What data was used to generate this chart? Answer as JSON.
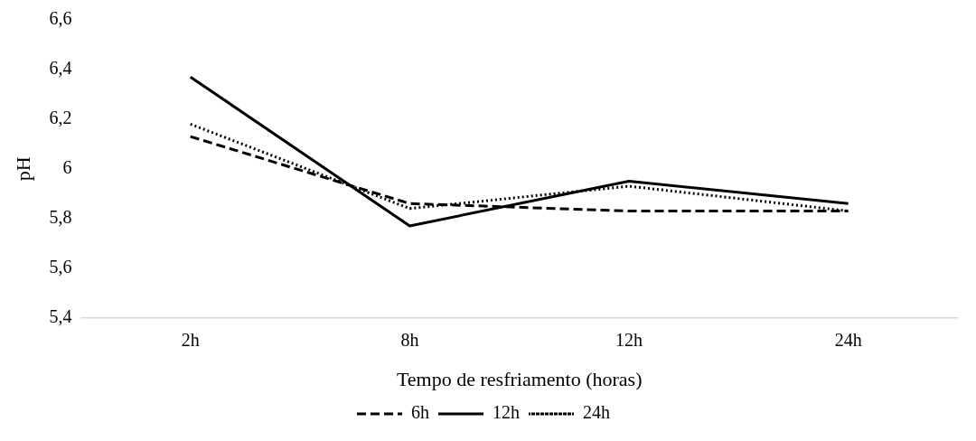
{
  "chart_data": {
    "type": "line",
    "xlabel": "Tempo de resfriamento (horas)",
    "ylabel": "pH",
    "categories": [
      "2h",
      "8h",
      "12h",
      "24h"
    ],
    "series": [
      {
        "name": "6h",
        "color": "#000000",
        "values": [
          6.13,
          5.86,
          5.83,
          5.83
        ],
        "line_style": "dashed"
      },
      {
        "name": "12h",
        "color": "#000000",
        "values": [
          6.37,
          5.77,
          5.95,
          5.86
        ],
        "line_style": "solid"
      },
      {
        "name": "24h",
        "color": "#000000",
        "values": [
          6.18,
          5.84,
          5.93,
          5.83
        ],
        "line_style": "dotted"
      }
    ],
    "ylim": [
      5.4,
      6.6
    ],
    "yticks": [
      {
        "value": 5.4,
        "label": "5,4"
      },
      {
        "value": 5.6,
        "label": "5,6"
      },
      {
        "value": 5.8,
        "label": "5,8"
      },
      {
        "value": 6,
        "label": "6"
      },
      {
        "value": 6.2,
        "label": "6,2"
      },
      {
        "value": 6.4,
        "label": "6,4"
      },
      {
        "value": 6.6,
        "label": "6,6"
      }
    ],
    "grid": false,
    "legend": "bottom",
    "marker": "none"
  }
}
